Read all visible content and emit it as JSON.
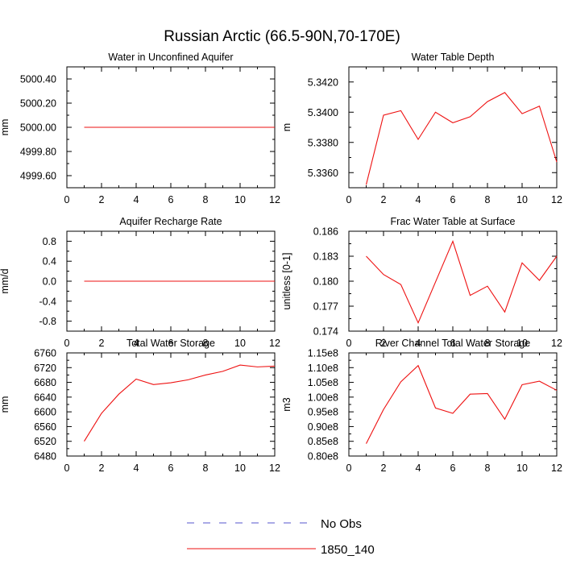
{
  "figure": {
    "title": "Russian Arctic (66.5-90N,70-170E)"
  },
  "legend": {
    "position": "bottom-center",
    "items": [
      {
        "label": "No Obs",
        "color": "#5555cc",
        "style": "dashed"
      },
      {
        "label": "1850_140",
        "color": "#ee1111",
        "style": "solid"
      }
    ]
  },
  "chart_data": [
    {
      "type": "line",
      "title": "Water in Unconfined Aquifer",
      "ylabel": "mm",
      "xlim": [
        0,
        12
      ],
      "ylim": [
        4999.5,
        5000.5
      ],
      "xticks": [
        0,
        2,
        4,
        6,
        8,
        10,
        12
      ],
      "xtick_labels": [
        "0",
        "2",
        "4",
        "6",
        "8",
        "10",
        "12"
      ],
      "yticks": [
        4999.6,
        4999.8,
        5000.0,
        5000.2,
        5000.4
      ],
      "ytick_labels": [
        "4999.60",
        "4999.80",
        "5000.00",
        "5000.20",
        "5000.40"
      ],
      "series": [
        {
          "name": "1850_140",
          "color": "#ee1111",
          "x": [
            1,
            2,
            3,
            4,
            5,
            6,
            7,
            8,
            9,
            10,
            11,
            12
          ],
          "values": [
            5000,
            5000,
            5000,
            5000,
            5000,
            5000,
            5000,
            5000,
            5000,
            5000,
            5000,
            5000
          ]
        }
      ]
    },
    {
      "type": "line",
      "title": "Water Table Depth",
      "ylabel": "m",
      "xlim": [
        0,
        12
      ],
      "ylim": [
        5.335,
        5.343
      ],
      "xticks": [
        0,
        2,
        4,
        6,
        8,
        10,
        12
      ],
      "xtick_labels": [
        "0",
        "2",
        "4",
        "6",
        "8",
        "10",
        "12"
      ],
      "yticks": [
        5.336,
        5.338,
        5.34,
        5.342
      ],
      "ytick_labels": [
        "5.3360",
        "5.3380",
        "5.3400",
        "5.3420"
      ],
      "series": [
        {
          "name": "1850_140",
          "color": "#ee1111",
          "x": [
            1,
            2,
            3,
            4,
            5,
            6,
            7,
            8,
            9,
            10,
            11,
            12
          ],
          "values": [
            5.3352,
            5.3398,
            5.3401,
            5.3382,
            5.34,
            5.3393,
            5.3397,
            5.3407,
            5.3413,
            5.3399,
            5.3404,
            5.3367
          ]
        }
      ]
    },
    {
      "type": "line",
      "title": "Aquifer Recharge Rate",
      "ylabel": "mm/d",
      "xlim": [
        0,
        12
      ],
      "ylim": [
        -1.0,
        1.0
      ],
      "xticks": [
        0,
        2,
        4,
        6,
        8,
        10,
        12
      ],
      "xtick_labels": [
        "0",
        "2",
        "4",
        "6",
        "8",
        "10",
        "12"
      ],
      "yticks": [
        -0.8,
        -0.4,
        0.0,
        0.4,
        0.8
      ],
      "ytick_labels": [
        "-0.8",
        "-0.4",
        "0.0",
        "0.4",
        "0.8"
      ],
      "series": [
        {
          "name": "1850_140",
          "color": "#ee1111",
          "x": [
            1,
            2,
            3,
            4,
            5,
            6,
            7,
            8,
            9,
            10,
            11,
            12
          ],
          "values": [
            0,
            0,
            0,
            0,
            0,
            0,
            0,
            0,
            0,
            0,
            0,
            0
          ]
        }
      ]
    },
    {
      "type": "line",
      "title": "Frac Water Table at Surface",
      "ylabel": "unitless [0-1]",
      "xlim": [
        0,
        12
      ],
      "ylim": [
        0.174,
        0.186
      ],
      "xticks": [
        0,
        2,
        4,
        6,
        8,
        10,
        12
      ],
      "xtick_labels": [
        "0",
        "2",
        "4",
        "6",
        "8",
        "10",
        "12"
      ],
      "yticks": [
        0.174,
        0.177,
        0.18,
        0.183,
        0.186
      ],
      "ytick_labels": [
        "0.174",
        "0.177",
        "0.180",
        "0.183",
        "0.186"
      ],
      "series": [
        {
          "name": "1850_140",
          "color": "#ee1111",
          "x": [
            1,
            2,
            3,
            4,
            5,
            6,
            7,
            8,
            9,
            10,
            11,
            12
          ],
          "values": [
            0.183,
            0.1808,
            0.1796,
            0.175,
            0.1799,
            0.1848,
            0.1783,
            0.1794,
            0.1763,
            0.1822,
            0.1801,
            0.183
          ]
        }
      ]
    },
    {
      "type": "line",
      "title": "Total Water Storage",
      "ylabel": "mm",
      "xlim": [
        0,
        12
      ],
      "ylim": [
        6480,
        6760
      ],
      "xticks": [
        0,
        2,
        4,
        6,
        8,
        10,
        12
      ],
      "xtick_labels": [
        "0",
        "2",
        "4",
        "6",
        "8",
        "10",
        "12"
      ],
      "yticks": [
        6480,
        6520,
        6560,
        6600,
        6640,
        6680,
        6720,
        6760
      ],
      "ytick_labels": [
        "6480",
        "6520",
        "6560",
        "6600",
        "6640",
        "6680",
        "6720",
        "6760"
      ],
      "series": [
        {
          "name": "1850_140",
          "color": "#ee1111",
          "x": [
            1,
            2,
            3,
            4,
            5,
            6,
            7,
            8,
            9,
            10,
            11,
            12
          ],
          "values": [
            6520,
            6596,
            6648,
            6689,
            6674,
            6679,
            6687,
            6700,
            6710,
            6727,
            6722,
            6724
          ]
        }
      ]
    },
    {
      "type": "line",
      "title": "River Channel Total Water Storage",
      "ylabel": "m3",
      "xlim": [
        0,
        12
      ],
      "ylim": [
        80000000.0,
        115000000.0
      ],
      "xticks": [
        0,
        2,
        4,
        6,
        8,
        10,
        12
      ],
      "xtick_labels": [
        "0",
        "2",
        "4",
        "6",
        "8",
        "10",
        "12"
      ],
      "yticks": [
        80000000.0,
        85000000.0,
        90000000.0,
        95000000.0,
        100000000.0,
        105000000.0,
        110000000.0,
        115000000.0
      ],
      "ytick_labels": [
        "0.80e8",
        "0.85e8",
        "0.90e8",
        "0.95e8",
        "1.00e8",
        "1.05e8",
        "1.10e8",
        "1.15e8"
      ],
      "series": [
        {
          "name": "1850_140",
          "color": "#ee1111",
          "x": [
            1,
            2,
            3,
            4,
            5,
            6,
            7,
            8,
            9,
            10,
            11,
            12
          ],
          "values": [
            84200000.0,
            95800000.0,
            105200000.0,
            110700000.0,
            96300000.0,
            94500000.0,
            101000000.0,
            101200000.0,
            92500000.0,
            104200000.0,
            105400000.0,
            102300000.0
          ]
        }
      ]
    }
  ]
}
